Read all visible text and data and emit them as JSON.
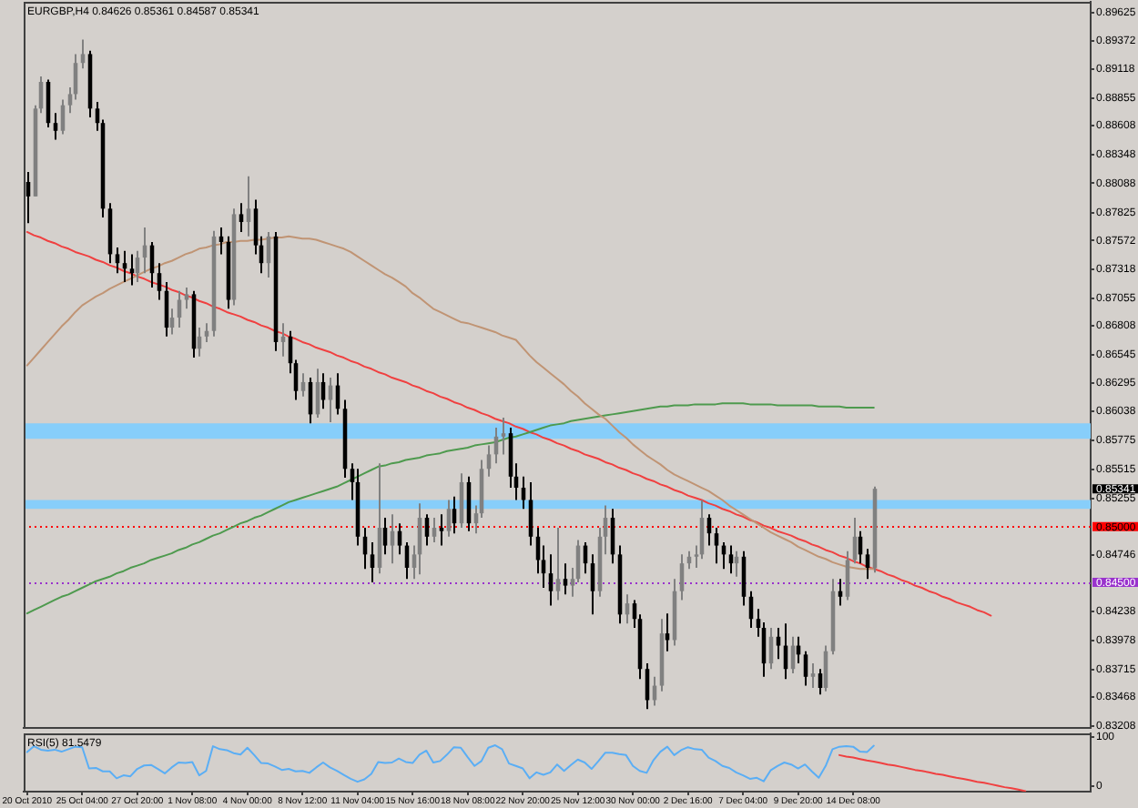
{
  "chart_data": [
    {
      "type": "candlestick",
      "title": "EURGBP,H4 0.84626 0.85361 0.84587 0.85341",
      "grid": false,
      "legend": false,
      "marker": "none",
      "categories": [
        null,
        null,
        null,
        null,
        null,
        null,
        null,
        null,
        null,
        null,
        null,
        null,
        null,
        null,
        null,
        null,
        null,
        null,
        null,
        null,
        null,
        null,
        null,
        null,
        null,
        null,
        null,
        null,
        null,
        null,
        null,
        null,
        null,
        null,
        null,
        null,
        null,
        null,
        null,
        null,
        null,
        null,
        null,
        null,
        null,
        null,
        null,
        null,
        null,
        null,
        null,
        null,
        null,
        null,
        null,
        null,
        null,
        null,
        null,
        null,
        null,
        null,
        null,
        null,
        null,
        null,
        null,
        null,
        null,
        null,
        null,
        null,
        null,
        null,
        null,
        null,
        null,
        null,
        null,
        null,
        null,
        null,
        null,
        null,
        null,
        null,
        null,
        null,
        null,
        null,
        null,
        null,
        null,
        null,
        null,
        null,
        null,
        null,
        null,
        null,
        null,
        null,
        null,
        null,
        null,
        null,
        null,
        null,
        null,
        null,
        null,
        null,
        null,
        null,
        null,
        null,
        null,
        null,
        null,
        null,
        null,
        null,
        null,
        null,
        null,
        null,
        null,
        null,
        null,
        null,
        null,
        null,
        null,
        null,
        null,
        null,
        null,
        null,
        null,
        null,
        null,
        null,
        null,
        null,
        null,
        null,
        null,
        null,
        null,
        null,
        null,
        null,
        null,
        null,
        null
      ],
      "ohlc": [
        [
          0.881,
          0.8819,
          0.8773,
          0.8797
        ],
        [
          0.8797,
          0.8879,
          0.8797,
          0.8876
        ],
        [
          0.8876,
          0.8905,
          0.8872,
          0.89
        ],
        [
          0.89,
          0.8902,
          0.8859,
          0.8863
        ],
        [
          0.8863,
          0.8872,
          0.8848,
          0.8856
        ],
        [
          0.8856,
          0.8884,
          0.8853,
          0.8879
        ],
        [
          0.8879,
          0.8895,
          0.8872,
          0.8889
        ],
        [
          0.8889,
          0.8925,
          0.8884,
          0.8917
        ],
        [
          0.8917,
          0.8938,
          0.8912,
          0.8925
        ],
        [
          0.8925,
          0.8928,
          0.8868,
          0.8876
        ],
        [
          0.8876,
          0.8882,
          0.8856,
          0.8863
        ],
        [
          0.8863,
          0.8866,
          0.8778,
          0.8786
        ],
        [
          0.8786,
          0.8791,
          0.8737,
          0.8745
        ],
        [
          0.8745,
          0.8751,
          0.8728,
          0.8737
        ],
        [
          0.8737,
          0.8748,
          0.872,
          0.8732
        ],
        [
          0.8732,
          0.8745,
          0.8717,
          0.8728
        ],
        [
          0.8728,
          0.8748,
          0.872,
          0.8742
        ],
        [
          0.8742,
          0.8769,
          0.8728,
          0.8753
        ],
        [
          0.8753,
          0.8756,
          0.8715,
          0.8728
        ],
        [
          0.8728,
          0.8737,
          0.8704,
          0.8712
        ],
        [
          0.8712,
          0.872,
          0.8671,
          0.8679
        ],
        [
          0.8679,
          0.8696,
          0.8673,
          0.8688
        ],
        [
          0.8688,
          0.8712,
          0.8679,
          0.8704
        ],
        [
          0.8704,
          0.8715,
          0.8696,
          0.8709
        ],
        [
          0.8709,
          0.8712,
          0.8652,
          0.866
        ],
        [
          0.866,
          0.8679,
          0.8653,
          0.8671
        ],
        [
          0.8671,
          0.8683,
          0.8666,
          0.8676
        ],
        [
          0.8676,
          0.8766,
          0.8671,
          0.8761
        ],
        [
          0.8761,
          0.8769,
          0.8745,
          0.8756
        ],
        [
          0.8756,
          0.8761,
          0.8696,
          0.8704
        ],
        [
          0.8704,
          0.8786,
          0.8699,
          0.8781
        ],
        [
          0.8781,
          0.8791,
          0.8765,
          0.8774
        ],
        [
          0.8774,
          0.8815,
          0.8761,
          0.8786
        ],
        [
          0.8786,
          0.8794,
          0.8745,
          0.8753
        ],
        [
          0.8753,
          0.8761,
          0.8728,
          0.8737
        ],
        [
          0.8737,
          0.8765,
          0.8724,
          0.8761
        ],
        [
          0.8761,
          0.8765,
          0.8658,
          0.8666
        ],
        [
          0.8666,
          0.8683,
          0.8653,
          0.8671
        ],
        [
          0.8671,
          0.8676,
          0.8638,
          0.8647
        ],
        [
          0.8647,
          0.865,
          0.8614,
          0.8622
        ],
        [
          0.8622,
          0.8638,
          0.8617,
          0.863
        ],
        [
          0.863,
          0.8634,
          0.8593,
          0.8601
        ],
        [
          0.8601,
          0.8642,
          0.8598,
          0.863
        ],
        [
          0.863,
          0.8638,
          0.8606,
          0.8614
        ],
        [
          0.8614,
          0.8634,
          0.8594,
          0.8627
        ],
        [
          0.8627,
          0.8638,
          0.8601,
          0.8606
        ],
        [
          0.8606,
          0.8614,
          0.8544,
          0.8552
        ],
        [
          0.8552,
          0.8557,
          0.8524,
          0.854
        ],
        [
          0.854,
          0.8552,
          0.8483,
          0.8491
        ],
        [
          0.8491,
          0.8499,
          0.8462,
          0.8475
        ],
        [
          0.8475,
          0.8486,
          0.845,
          0.8463
        ],
        [
          0.8463,
          0.8557,
          0.8458,
          0.8499
        ],
        [
          0.8499,
          0.8508,
          0.8475,
          0.8483
        ],
        [
          0.8483,
          0.8511,
          0.8467,
          0.8496
        ],
        [
          0.8496,
          0.8503,
          0.8475,
          0.8483
        ],
        [
          0.8483,
          0.8486,
          0.8453,
          0.8463
        ],
        [
          0.8463,
          0.8483,
          0.8453,
          0.8475
        ],
        [
          0.8475,
          0.8521,
          0.8457,
          0.8508
        ],
        [
          0.8508,
          0.8511,
          0.8483,
          0.8491
        ],
        [
          0.8491,
          0.8508,
          0.8486,
          0.8499
        ],
        [
          0.8499,
          0.8511,
          0.8483,
          0.8496
        ],
        [
          0.8496,
          0.8524,
          0.8491,
          0.8516
        ],
        [
          0.8516,
          0.8527,
          0.8494,
          0.8503
        ],
        [
          0.8503,
          0.8548,
          0.8499,
          0.854
        ],
        [
          0.854,
          0.8545,
          0.8496,
          0.8503
        ],
        [
          0.8503,
          0.8519,
          0.8494,
          0.8512
        ],
        [
          0.8512,
          0.856,
          0.8508,
          0.8552
        ],
        [
          0.8552,
          0.8573,
          0.8545,
          0.8565
        ],
        [
          0.8565,
          0.8589,
          0.8557,
          0.8581
        ],
        [
          0.8581,
          0.8598,
          0.8565,
          0.8584
        ],
        [
          0.8584,
          0.8589,
          0.8535,
          0.8545
        ],
        [
          0.8545,
          0.8557,
          0.8524,
          0.8535
        ],
        [
          0.8535,
          0.8545,
          0.8516,
          0.8524
        ],
        [
          0.8524,
          0.854,
          0.8483,
          0.8491
        ],
        [
          0.8491,
          0.8499,
          0.8458,
          0.847
        ],
        [
          0.847,
          0.8483,
          0.8445,
          0.8458
        ],
        [
          0.8458,
          0.8475,
          0.8429,
          0.8442
        ],
        [
          0.8442,
          0.8499,
          0.8434,
          0.8453
        ],
        [
          0.8453,
          0.8467,
          0.8439,
          0.8447
        ],
        [
          0.8447,
          0.8463,
          0.8437,
          0.8453
        ],
        [
          0.8453,
          0.8488,
          0.845,
          0.8483
        ],
        [
          0.8483,
          0.8486,
          0.8458,
          0.8467
        ],
        [
          0.8467,
          0.8475,
          0.8421,
          0.8442
        ],
        [
          0.8442,
          0.8499,
          0.8437,
          0.8491
        ],
        [
          0.8491,
          0.8519,
          0.8475,
          0.8508
        ],
        [
          0.8508,
          0.8516,
          0.8467,
          0.8475
        ],
        [
          0.8475,
          0.8483,
          0.8413,
          0.8421
        ],
        [
          0.8421,
          0.8439,
          0.8413,
          0.8431
        ],
        [
          0.8431,
          0.8434,
          0.8409,
          0.8417
        ],
        [
          0.8417,
          0.8421,
          0.8363,
          0.8372
        ],
        [
          0.8372,
          0.8377,
          0.8336,
          0.8344
        ],
        [
          0.8344,
          0.8365,
          0.8339,
          0.8357
        ],
        [
          0.8357,
          0.8417,
          0.8352,
          0.8404
        ],
        [
          0.8404,
          0.8422,
          0.8388,
          0.8398
        ],
        [
          0.8398,
          0.8453,
          0.8393,
          0.8442
        ],
        [
          0.8442,
          0.8475,
          0.8434,
          0.8467
        ],
        [
          0.8467,
          0.8478,
          0.8462,
          0.8473
        ],
        [
          0.8473,
          0.8483,
          0.8463,
          0.8475
        ],
        [
          0.8475,
          0.8524,
          0.8471,
          0.8508
        ],
        [
          0.8508,
          0.8511,
          0.8483,
          0.8494
        ],
        [
          0.8494,
          0.8499,
          0.8467,
          0.8483
        ],
        [
          0.8483,
          0.8486,
          0.8462,
          0.8475
        ],
        [
          0.8475,
          0.8483,
          0.8458,
          0.8467
        ],
        [
          0.8467,
          0.8478,
          0.8455,
          0.8473
        ],
        [
          0.8473,
          0.8478,
          0.8429,
          0.8437
        ],
        [
          0.8437,
          0.8442,
          0.8409,
          0.8417
        ],
        [
          0.8417,
          0.8426,
          0.8401,
          0.8409
        ],
        [
          0.8409,
          0.8414,
          0.8365,
          0.8377
        ],
        [
          0.8377,
          0.8409,
          0.8372,
          0.8401
        ],
        [
          0.8401,
          0.8409,
          0.8381,
          0.8393
        ],
        [
          0.8393,
          0.8413,
          0.8363,
          0.8372
        ],
        [
          0.8372,
          0.8401,
          0.8368,
          0.8393
        ],
        [
          0.8393,
          0.8401,
          0.8377,
          0.8385
        ],
        [
          0.8385,
          0.8388,
          0.8357,
          0.8365
        ],
        [
          0.8365,
          0.8377,
          0.8355,
          0.8368
        ],
        [
          0.8368,
          0.8372,
          0.8349,
          0.8355
        ],
        [
          0.8355,
          0.8393,
          0.8352,
          0.8388
        ],
        [
          0.8388,
          0.8453,
          0.8385,
          0.8442
        ],
        [
          0.8442,
          0.8453,
          0.8429,
          0.8437
        ],
        [
          0.8437,
          0.8478,
          0.8434,
          0.847
        ],
        [
          0.847,
          0.8508,
          0.8467,
          0.8491
        ],
        [
          0.8491,
          0.8496,
          0.8467,
          0.8475
        ],
        [
          0.8475,
          0.848,
          0.8453,
          0.8463
        ],
        [
          0.84626,
          0.85361,
          0.84587,
          0.85341
        ],
        null,
        null,
        null,
        null,
        null,
        null,
        null,
        null,
        null,
        null,
        null,
        null,
        null,
        null,
        null,
        null,
        null,
        null,
        null,
        null,
        null,
        null,
        null,
        null,
        null,
        null,
        null,
        null,
        null,
        null,
        null
      ],
      "colors": [
        "#000000",
        "#808080",
        "#808080",
        "#000000",
        "#000000",
        "#808080",
        "#808080",
        "#808080",
        "#808080",
        "#000000",
        "#000000",
        "#000000",
        "#000000",
        "#000000",
        "#000000",
        "#000000",
        "#808080",
        "#808080",
        "#000000",
        "#000000",
        "#000000",
        "#808080",
        "#808080",
        "#808080",
        "#000000",
        "#808080",
        "#808080",
        "#808080",
        "#000000",
        "#000000",
        "#808080",
        "#000000",
        "#808080",
        "#000000",
        "#000000",
        "#808080",
        "#000000",
        "#808080",
        "#000000",
        "#000000",
        "#808080",
        "#000000",
        "#808080",
        "#000000",
        "#808080",
        "#000000",
        "#000000",
        "#000000",
        "#000000",
        "#000000",
        "#000000",
        "#808080",
        "#000000",
        "#808080",
        "#000000",
        "#000000",
        "#808080",
        "#808080",
        "#000000",
        "#808080",
        "#000000",
        "#808080",
        "#000000",
        "#808080",
        "#000000",
        "#808080",
        "#808080",
        "#808080",
        "#808080",
        "#808080",
        "#000000",
        "#000000",
        "#000000",
        "#000000",
        "#000000",
        "#000000",
        "#000000",
        "#808080",
        "#000000",
        "#808080",
        "#808080",
        "#000000",
        "#000000",
        "#808080",
        "#808080",
        "#000000",
        "#000000",
        "#808080",
        "#000000",
        "#000000",
        "#000000",
        "#808080",
        "#808080",
        "#000000",
        "#808080",
        "#808080",
        "#808080",
        "#808080",
        "#808080",
        "#000000",
        "#000000",
        "#000000",
        "#000000",
        "#808080",
        "#000000",
        "#000000",
        "#000000",
        "#000000",
        "#808080",
        "#000000",
        "#000000",
        "#808080",
        "#000000",
        "#000000",
        "#808080",
        "#000000",
        "#808080",
        "#808080",
        "#000000",
        "#808080",
        "#808080",
        "#000000",
        "#000000",
        "#808080",
        null,
        null,
        null,
        null,
        null,
        null,
        null,
        null,
        null,
        null,
        null,
        null,
        null,
        null,
        null,
        null,
        null,
        null,
        null,
        null,
        null,
        null,
        null,
        null,
        null,
        null,
        null,
        null,
        null,
        null,
        null
      ],
      "series": [
        {
          "type": "line",
          "color": "#c09474",
          "values": [
            0.8645,
            0.8652,
            0.8659,
            0.8666,
            0.8673,
            0.868,
            0.8686,
            0.8693,
            0.8699,
            0.8703,
            0.8707,
            0.871,
            0.8714,
            0.8717,
            0.872,
            0.8723,
            0.8726,
            0.8729,
            0.8732,
            0.8734,
            0.8737,
            0.8739,
            0.8742,
            0.8745,
            0.8747,
            0.875,
            0.8751,
            0.8753,
            0.8754,
            0.8756,
            0.8756,
            0.8757,
            0.8757,
            0.8758,
            0.8758,
            0.8759,
            0.876,
            0.876,
            0.8761,
            0.876,
            0.8759,
            0.8759,
            0.8758,
            0.8756,
            0.8754,
            0.8752,
            0.875,
            0.8747,
            0.8743,
            0.8739,
            0.8735,
            0.8731,
            0.8727,
            0.8724,
            0.872,
            0.8716,
            0.871,
            0.8706,
            0.8701,
            0.8696,
            0.8693,
            0.869,
            0.8687,
            0.8684,
            0.8683,
            0.8681,
            0.8679,
            0.8677,
            0.8675,
            0.8672,
            0.867,
            0.8668,
            0.8661,
            0.8654,
            0.8648,
            0.8643,
            0.8638,
            0.8633,
            0.8628,
            0.8622,
            0.8617,
            0.8611,
            0.8606,
            0.8601,
            0.8597,
            0.8591,
            0.8585,
            0.858,
            0.8574,
            0.8569,
            0.8564,
            0.856,
            0.8556,
            0.8551,
            0.8547,
            0.8544,
            0.8541,
            0.8538,
            0.8535,
            0.8532,
            0.8528,
            0.8524,
            0.8519,
            0.8515,
            0.8511,
            0.8507,
            0.8503,
            0.8499,
            0.8495,
            0.8492,
            0.8489,
            0.8486,
            0.8482,
            0.8479,
            0.8476,
            0.8473,
            0.8471,
            0.8468,
            0.8466,
            0.8464,
            0.8463,
            0.8462,
            0.8462,
            0.8462,
            null,
            null,
            null,
            null,
            null,
            null,
            null,
            null,
            null,
            null,
            null,
            null,
            null,
            null,
            null,
            null,
            null,
            null,
            null,
            null,
            null,
            null,
            null,
            null,
            null,
            null,
            null,
            null,
            null,
            null,
            null
          ]
        },
        {
          "type": "line",
          "color": "#4e9a4e",
          "values": [
            0.8422,
            0.8425,
            0.8428,
            0.8431,
            0.8434,
            0.8437,
            0.8439,
            0.8442,
            0.8445,
            0.8448,
            0.8451,
            0.8453,
            0.8455,
            0.8458,
            0.846,
            0.8463,
            0.8465,
            0.8467,
            0.847,
            0.8472,
            0.8474,
            0.8476,
            0.8479,
            0.8481,
            0.8484,
            0.8486,
            0.8489,
            0.8492,
            0.8494,
            0.8497,
            0.85,
            0.8503,
            0.8505,
            0.8508,
            0.851,
            0.8513,
            0.8516,
            0.8519,
            0.8522,
            0.8524,
            0.8526,
            0.8528,
            0.853,
            0.8532,
            0.8534,
            0.8536,
            0.8539,
            0.8542,
            0.8545,
            0.8548,
            0.8551,
            0.8554,
            0.8555,
            0.8557,
            0.8558,
            0.856,
            0.8561,
            0.8562,
            0.8564,
            0.8565,
            0.8566,
            0.8568,
            0.8569,
            0.857,
            0.8571,
            0.8573,
            0.8574,
            0.8575,
            0.8576,
            0.8578,
            0.858,
            0.8581,
            0.8583,
            0.8585,
            0.8587,
            0.8589,
            0.8591,
            0.8592,
            0.8593,
            0.8595,
            0.8596,
            0.8597,
            0.8598,
            0.8599,
            0.86,
            0.8601,
            0.8602,
            0.8603,
            0.8604,
            0.8605,
            0.8606,
            0.8607,
            0.8608,
            0.8608,
            0.8609,
            0.8609,
            0.8609,
            0.861,
            0.861,
            0.861,
            0.861,
            0.8611,
            0.8611,
            0.8611,
            0.8611,
            0.861,
            0.861,
            0.861,
            0.861,
            0.8609,
            0.8609,
            0.8609,
            0.8609,
            0.8609,
            0.8609,
            0.8608,
            0.8608,
            0.8608,
            0.8608,
            0.8607,
            0.8607,
            0.8607,
            0.8607,
            0.8607,
            null,
            null,
            null,
            null,
            null,
            null,
            null,
            null,
            null,
            null,
            null,
            null,
            null,
            null,
            null,
            null,
            null,
            null,
            null,
            null,
            null,
            null,
            null,
            null,
            null,
            null,
            null,
            null,
            null,
            null,
            null
          ]
        },
        {
          "type": "line",
          "color": "#f04040",
          "values": [
            0.8765,
            0.8762,
            0.876,
            0.8757,
            0.8755,
            0.8752,
            0.875,
            0.8747,
            0.8745,
            0.8743,
            0.874,
            0.8738,
            0.8735,
            0.8733,
            0.873,
            0.8728,
            0.8725,
            0.8723,
            0.872,
            0.8718,
            0.8716,
            0.8713,
            0.8711,
            0.8708,
            0.8706,
            0.8703,
            0.8701,
            0.8698,
            0.8696,
            0.8693,
            0.8691,
            0.8689,
            0.8686,
            0.8684,
            0.8681,
            0.8679,
            0.8676,
            0.8674,
            0.8671,
            0.8669,
            0.8666,
            0.8664,
            0.8661,
            0.8659,
            0.8657,
            0.8654,
            0.8652,
            0.8649,
            0.8647,
            0.8644,
            0.8642,
            0.8639,
            0.8637,
            0.8634,
            0.8632,
            0.863,
            0.8627,
            0.8625,
            0.8622,
            0.862,
            0.8617,
            0.8615,
            0.8612,
            0.861,
            0.8607,
            0.8605,
            0.8602,
            0.86,
            0.8597,
            0.8595,
            0.8593,
            0.859,
            0.8588,
            0.8585,
            0.8583,
            0.858,
            0.8578,
            0.8575,
            0.8573,
            0.857,
            0.8568,
            0.8565,
            0.8563,
            0.8561,
            0.8558,
            0.8556,
            0.8553,
            0.8551,
            0.8548,
            0.8546,
            0.8543,
            0.8541,
            0.8538,
            0.8536,
            0.8533,
            0.8531,
            0.8528,
            0.8526,
            0.8524,
            0.8521,
            0.8519,
            0.8516,
            0.8514,
            0.8511,
            0.8509,
            0.8506,
            0.8504,
            0.8501,
            0.8499,
            0.8496,
            0.8494,
            0.8492,
            0.8489,
            0.8487,
            0.8484,
            0.8482,
            0.8479,
            0.8477,
            0.8474,
            0.8472,
            0.8469,
            0.8467,
            0.8464,
            0.8462,
            0.846,
            0.8457,
            0.8455,
            0.8452,
            0.845,
            0.8447,
            0.8445,
            0.8442,
            0.844,
            0.8437,
            0.8435,
            0.8432,
            0.843,
            0.8428,
            0.8425,
            0.8423,
            0.842,
            null,
            null,
            null,
            null,
            null,
            null,
            null,
            null,
            null,
            null,
            null,
            null,
            null,
            null
          ]
        }
      ],
      "ylim": [
        0.8319,
        0.8972
      ],
      "yticks": [
        0.83208,
        0.83468,
        0.83715,
        0.83978,
        0.84238,
        0.84746,
        0.85255,
        0.85515,
        0.85775,
        0.86038,
        0.86295,
        0.86545,
        0.86808,
        0.87055,
        0.87318,
        0.87572,
        0.87825,
        0.88088,
        0.88348,
        0.88608,
        0.88855,
        0.89118,
        0.89372,
        0.89625
      ],
      "bands": [
        {
          "axis": "y",
          "from": 0.8579,
          "to": 0.8593,
          "color": "#87cefa"
        },
        {
          "axis": "y",
          "from": 0.8516,
          "to": 0.8524,
          "color": "#87cefa"
        }
      ],
      "ref_lines": [
        {
          "axis": "y",
          "value": 0.85,
          "label": "0.85000",
          "color": "#ff0000",
          "line_style": "dotted"
        },
        {
          "axis": "y",
          "value": 0.845,
          "label": "0.84500",
          "color": "#9932cc",
          "line_style": "dotted"
        }
      ],
      "annotations": [
        "0.85341"
      ]
    },
    {
      "type": "line",
      "title": "RSI(5) 81.5479",
      "grid": false,
      "legend": false,
      "marker": "none",
      "categories": [
        "20 Oct 2010",
        null,
        null,
        null,
        null,
        null,
        null,
        null,
        "25 Oct 04:00",
        null,
        null,
        null,
        null,
        null,
        null,
        null,
        "27 Oct 20:00",
        null,
        null,
        null,
        null,
        null,
        null,
        null,
        "1 Nov 08:00",
        null,
        null,
        null,
        null,
        null,
        null,
        null,
        "4 Nov 00:00",
        null,
        null,
        null,
        null,
        null,
        null,
        null,
        "8 Nov 12:00",
        null,
        null,
        null,
        null,
        null,
        null,
        null,
        "11 Nov 04:00",
        null,
        null,
        null,
        null,
        null,
        null,
        null,
        "15 Nov 16:00",
        null,
        null,
        null,
        null,
        null,
        null,
        null,
        "18 Nov 08:00",
        null,
        null,
        null,
        null,
        null,
        null,
        null,
        "22 Nov 20:00",
        null,
        null,
        null,
        null,
        null,
        null,
        null,
        "25 Nov 12:00",
        null,
        null,
        null,
        null,
        null,
        null,
        null,
        "30 Nov 00:00",
        null,
        null,
        null,
        null,
        null,
        null,
        null,
        "2 Dec 16:00",
        null,
        null,
        null,
        null,
        null,
        null,
        null,
        "7 Dec 04:00",
        null,
        null,
        null,
        null,
        null,
        null,
        null,
        "9 Dec 20:00",
        null,
        null,
        null,
        null,
        null,
        null,
        null,
        "14 Dec 08:00",
        null,
        null,
        null,
        null,
        null,
        null,
        null,
        null,
        null,
        null,
        null,
        null,
        null,
        null,
        null,
        null,
        null,
        null,
        null,
        null,
        null,
        null,
        null,
        null,
        null,
        null,
        null,
        null,
        null,
        null,
        null,
        null,
        null,
        null
      ],
      "series": [
        {
          "color": "#5aaef5",
          "values": [
            69,
            81,
            74,
            72,
            74,
            70,
            75,
            80,
            79,
            36,
            37,
            30,
            30,
            16,
            22,
            20,
            35,
            42,
            43,
            35,
            26,
            38,
            48,
            47,
            49,
            22,
            31,
            81,
            75,
            73,
            67,
            64,
            78,
            63,
            47,
            46,
            40,
            33,
            35,
            30,
            31,
            27,
            38,
            48,
            38,
            31,
            23,
            15,
            9,
            14,
            25,
            49,
            47,
            48,
            56,
            49,
            47,
            64,
            72,
            48,
            51,
            64,
            79,
            78,
            59,
            41,
            51,
            78,
            83,
            75,
            46,
            41,
            36,
            16,
            28,
            23,
            28,
            44,
            31,
            43,
            54,
            48,
            35,
            51,
            68,
            68,
            65,
            63,
            41,
            31,
            27,
            53,
            70,
            80,
            63,
            73,
            79,
            75,
            74,
            58,
            51,
            41,
            37,
            28,
            22,
            15,
            17,
            10,
            32,
            41,
            48,
            44,
            36,
            44,
            30,
            17,
            41,
            75,
            80,
            81,
            80,
            70,
            69,
            82,
            null,
            null,
            null,
            null,
            null,
            null,
            null,
            null,
            null,
            null,
            null,
            null,
            null,
            null,
            null,
            null,
            null,
            null,
            null,
            null,
            null,
            null,
            null,
            null,
            null,
            null,
            null,
            null,
            null,
            null,
            null
          ]
        },
        {
          "color": "#f04040",
          "values": [
            null,
            null,
            null,
            null,
            null,
            null,
            null,
            null,
            null,
            null,
            null,
            null,
            null,
            null,
            null,
            null,
            null,
            null,
            null,
            null,
            null,
            null,
            null,
            null,
            null,
            null,
            null,
            null,
            null,
            null,
            null,
            null,
            null,
            null,
            null,
            null,
            null,
            null,
            null,
            null,
            null,
            null,
            null,
            null,
            null,
            null,
            null,
            null,
            null,
            null,
            null,
            null,
            null,
            null,
            null,
            null,
            null,
            null,
            null,
            null,
            null,
            null,
            null,
            null,
            null,
            null,
            null,
            null,
            null,
            null,
            null,
            null,
            null,
            null,
            null,
            null,
            null,
            null,
            null,
            null,
            null,
            null,
            null,
            null,
            null,
            null,
            null,
            null,
            null,
            null,
            null,
            null,
            null,
            null,
            null,
            null,
            null,
            null,
            null,
            null,
            null,
            null,
            null,
            null,
            null,
            null,
            null,
            null,
            null,
            null,
            null,
            null,
            null,
            null,
            null,
            null,
            null,
            null,
            63,
            60,
            58,
            55,
            52,
            50,
            47,
            44,
            42,
            39,
            36,
            33,
            31,
            28,
            25,
            23,
            20,
            17,
            15,
            12,
            9,
            7,
            4,
            1,
            -2,
            -4,
            -7,
            -10,
            null,
            null,
            null,
            null,
            null,
            null,
            null,
            null,
            null
          ]
        }
      ],
      "ylim": [
        -11,
        107
      ],
      "yticks": [
        0,
        100
      ]
    }
  ]
}
